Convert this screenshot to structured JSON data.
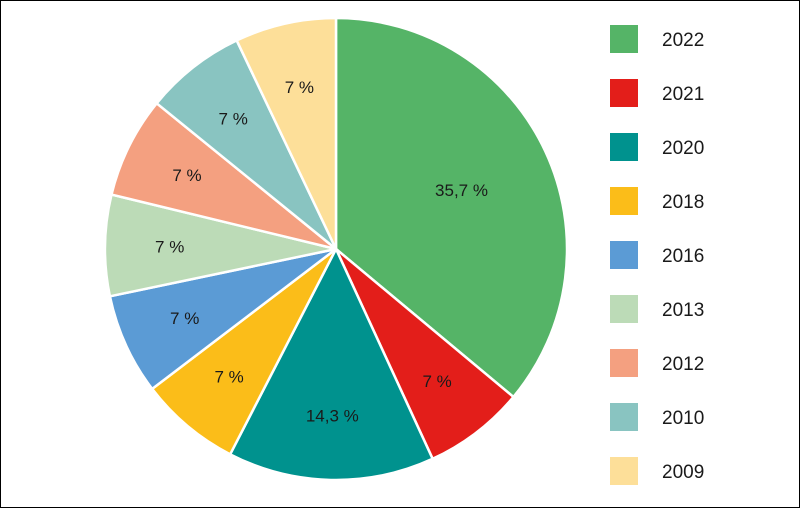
{
  "chart_data": {
    "type": "pie",
    "slices": [
      {
        "label": "2022",
        "value": 35.7,
        "display": "35,7 %",
        "color": "#55b467"
      },
      {
        "label": "2021",
        "value": 7.0,
        "display": "7 %",
        "color": "#e31e1a"
      },
      {
        "label": "2020",
        "value": 14.3,
        "display": "14,3 %",
        "color": "#00928e"
      },
      {
        "label": "2018",
        "value": 7.0,
        "display": "7 %",
        "color": "#fbbd19"
      },
      {
        "label": "2016",
        "value": 7.0,
        "display": "7 %",
        "color": "#5b9bd5"
      },
      {
        "label": "2013",
        "value": 7.0,
        "display": "7 %",
        "color": "#bcdbb7"
      },
      {
        "label": "2012",
        "value": 7.0,
        "display": "7 %",
        "color": "#f4a080"
      },
      {
        "label": "2010",
        "value": 7.0,
        "display": "7 %",
        "color": "#89c4c1"
      },
      {
        "label": "2009",
        "value": 7.0,
        "display": "7 %",
        "color": "#fddf99"
      }
    ],
    "legend_position": "right"
  }
}
